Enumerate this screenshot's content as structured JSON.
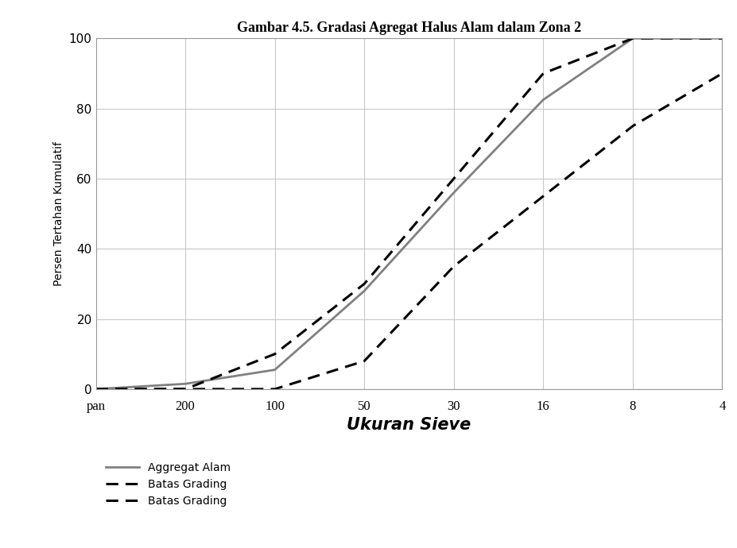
{
  "chart_data": {
    "type": "line",
    "title": "Gambar 4.5. Gradasi Agregat Halus Alam dalam Zona 2",
    "x_label": "Ukuran Sieve",
    "y_label": "Persen Tertahan Kumulatif",
    "categories": [
      "pan",
      "200",
      "100",
      "50",
      "30",
      "16",
      "8",
      "4"
    ],
    "series": [
      {
        "name": "Aggregat Alam",
        "color": "#808080",
        "line_style": "solid",
        "values": [
          0,
          1.5,
          5.5,
          28,
          56,
          82.5,
          100,
          100
        ]
      },
      {
        "name": "Batas Grading",
        "color": "#000000",
        "line_style": "dashed",
        "values": [
          0,
          0,
          10,
          30,
          60,
          90,
          100,
          100
        ]
      },
      {
        "name": "Batas Grading",
        "color": "#000000",
        "line_style": "dashed",
        "values": [
          0,
          0,
          0,
          8,
          35,
          55,
          75,
          90
        ]
      }
    ],
    "ylim": [
      0,
      100
    ],
    "yticks": [
      0,
      20,
      40,
      60,
      80,
      100
    ],
    "grid": true,
    "legend": "upper left"
  }
}
